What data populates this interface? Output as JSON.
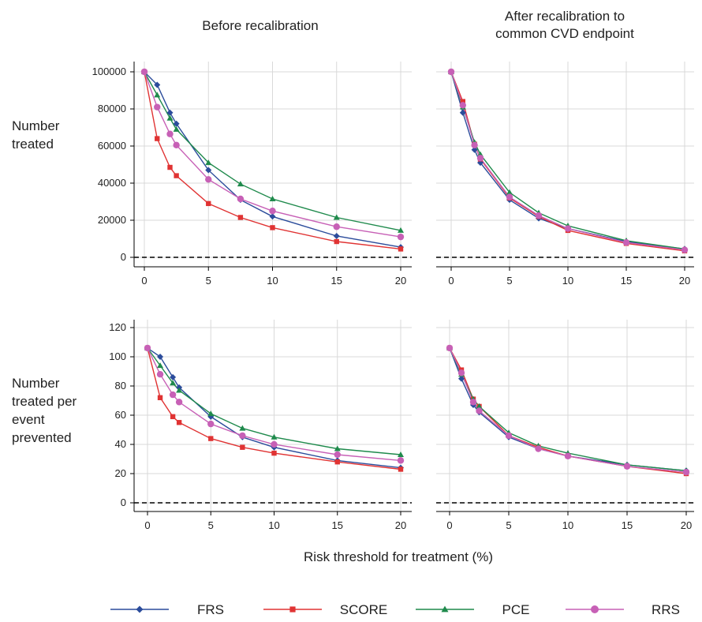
{
  "figure": {
    "col_titles": [
      "Before recalibration",
      "After recalibration to\ncommon CVD endpoint"
    ],
    "row_labels": [
      "Number\ntreated",
      "Number\ntreated per\nevent\nprevented"
    ],
    "xlabel": "Risk threshold for treatment (%)",
    "colors": {
      "FRS": "#2b4c9b",
      "SCORE": "#e03333",
      "PCE": "#1f8a4c",
      "RRS": "#c760b6",
      "grid": "#d9d9d9",
      "ref_line": "#000000"
    },
    "markers": {
      "FRS": "diamond",
      "SCORE": "square",
      "PCE": "triangle",
      "RRS": "circle"
    }
  },
  "legend": [
    {
      "name": "FRS",
      "color": "#2b4c9b",
      "marker": "diamond"
    },
    {
      "name": "SCORE",
      "color": "#e03333",
      "marker": "square"
    },
    {
      "name": "PCE",
      "color": "#1f8a4c",
      "marker": "triangle"
    },
    {
      "name": "RRS",
      "color": "#c760b6",
      "marker": "circle"
    }
  ],
  "chart_data": [
    {
      "type": "line",
      "panel": "top-left",
      "ylabel": "Number treated",
      "xlim": [
        0,
        20
      ],
      "ylim": [
        0,
        100000
      ],
      "xticks": [
        0,
        5,
        10,
        15,
        20
      ],
      "yticks": [
        0,
        20000,
        40000,
        60000,
        80000,
        100000
      ],
      "grid": true,
      "reference_line_y": 0,
      "series": [
        {
          "name": "FRS",
          "x": [
            0,
            1,
            2,
            2.5,
            5,
            7.5,
            10,
            15,
            20
          ],
          "y": [
            100000,
            93000,
            78000,
            72000,
            47000,
            31000,
            22000,
            11500,
            5500
          ]
        },
        {
          "name": "SCORE",
          "x": [
            0,
            1,
            2,
            2.5,
            5,
            7.5,
            10,
            15,
            20
          ],
          "y": [
            100000,
            64000,
            48500,
            44000,
            29000,
            21500,
            16000,
            8500,
            4500
          ]
        },
        {
          "name": "PCE",
          "x": [
            0,
            1,
            2,
            2.5,
            5,
            7.5,
            10,
            15,
            20
          ],
          "y": [
            100000,
            87500,
            75000,
            69000,
            51000,
            39500,
            31500,
            21500,
            14500
          ]
        },
        {
          "name": "RRS",
          "x": [
            0,
            1,
            2,
            2.5,
            5,
            7.5,
            10,
            15,
            20
          ],
          "y": [
            100000,
            81000,
            66500,
            60500,
            42000,
            31500,
            25000,
            16500,
            11000
          ]
        }
      ]
    },
    {
      "type": "line",
      "panel": "top-right",
      "ylabel": "Number treated",
      "xlim": [
        0,
        20
      ],
      "ylim": [
        0,
        100000
      ],
      "xticks": [
        0,
        5,
        10,
        15,
        20
      ],
      "grid": true,
      "reference_line_y": 0,
      "series": [
        {
          "name": "FRS",
          "x": [
            0,
            1,
            2,
            2.5,
            5,
            7.5,
            10,
            15,
            20
          ],
          "y": [
            100000,
            78000,
            58000,
            51000,
            31000,
            21000,
            15500,
            8500,
            4500
          ]
        },
        {
          "name": "SCORE",
          "x": [
            0,
            1,
            2,
            2.5,
            5,
            7.5,
            10,
            15,
            20
          ],
          "y": [
            100000,
            84000,
            61000,
            53000,
            32000,
            22000,
            14500,
            7500,
            3500
          ]
        },
        {
          "name": "PCE",
          "x": [
            0,
            1,
            2,
            2.5,
            5,
            7.5,
            10,
            15,
            20
          ],
          "y": [
            100000,
            81000,
            62000,
            55500,
            35000,
            24000,
            17000,
            9000,
            4500
          ]
        },
        {
          "name": "RRS",
          "x": [
            0,
            1,
            2,
            2.5,
            5,
            7.5,
            10,
            15,
            20
          ],
          "y": [
            100000,
            82000,
            60500,
            53500,
            32500,
            22500,
            15500,
            8000,
            4000
          ]
        }
      ]
    },
    {
      "type": "line",
      "panel": "bottom-left",
      "ylabel": "Number treated per event prevented",
      "xlim": [
        0,
        20
      ],
      "ylim": [
        0,
        120
      ],
      "xticks": [
        0,
        5,
        10,
        15,
        20
      ],
      "yticks": [
        0,
        20,
        40,
        60,
        80,
        100,
        120
      ],
      "grid": true,
      "reference_line_y": 0,
      "series": [
        {
          "name": "FRS",
          "x": [
            0,
            1,
            2,
            2.5,
            5,
            7.5,
            10,
            15,
            20
          ],
          "y": [
            106,
            100,
            86,
            79,
            59,
            45,
            38,
            29,
            24
          ]
        },
        {
          "name": "SCORE",
          "x": [
            0,
            1,
            2,
            2.5,
            5,
            7.5,
            10,
            15,
            20
          ],
          "y": [
            106,
            72,
            59,
            55,
            44,
            38,
            34,
            28,
            23
          ]
        },
        {
          "name": "PCE",
          "x": [
            0,
            1,
            2,
            2.5,
            5,
            7.5,
            10,
            15,
            20
          ],
          "y": [
            106,
            94,
            82,
            77,
            61,
            51,
            45,
            37,
            33
          ]
        },
        {
          "name": "RRS",
          "x": [
            0,
            1,
            2,
            2.5,
            5,
            7.5,
            10,
            15,
            20
          ],
          "y": [
            106,
            88,
            74,
            69,
            54,
            46,
            40,
            33,
            29
          ]
        }
      ]
    },
    {
      "type": "line",
      "panel": "bottom-right",
      "ylabel": "Number treated per event prevented",
      "xlim": [
        0,
        20
      ],
      "ylim": [
        0,
        120
      ],
      "xticks": [
        0,
        5,
        10,
        15,
        20
      ],
      "grid": true,
      "reference_line_y": 0,
      "series": [
        {
          "name": "FRS",
          "x": [
            0,
            1,
            2,
            2.5,
            5,
            7.5,
            10,
            15,
            20
          ],
          "y": [
            106,
            85,
            67,
            62,
            45,
            37,
            32,
            26,
            22
          ]
        },
        {
          "name": "SCORE",
          "x": [
            0,
            1,
            2,
            2.5,
            5,
            7.5,
            10,
            15,
            20
          ],
          "y": [
            106,
            91,
            71,
            66,
            46,
            38,
            32,
            25,
            20
          ]
        },
        {
          "name": "PCE",
          "x": [
            0,
            1,
            2,
            2.5,
            5,
            7.5,
            10,
            15,
            20
          ],
          "y": [
            106,
            88,
            71,
            66,
            48,
            39,
            34,
            26,
            22
          ]
        },
        {
          "name": "RRS",
          "x": [
            0,
            1,
            2,
            2.5,
            5,
            7.5,
            10,
            15,
            20
          ],
          "y": [
            106,
            89,
            69,
            63,
            46,
            37,
            32,
            25,
            21
          ]
        }
      ]
    }
  ]
}
